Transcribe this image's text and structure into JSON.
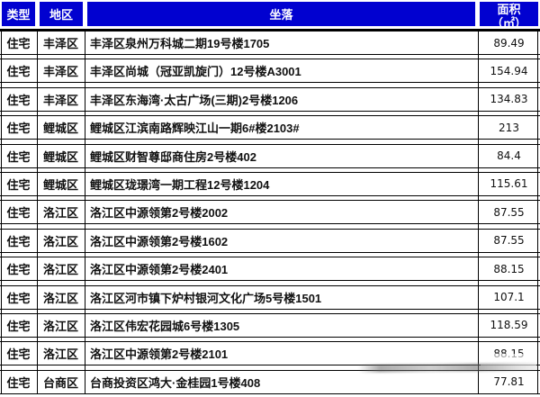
{
  "table": {
    "headers": {
      "type": "类型",
      "district": "地区",
      "location": "坐落",
      "area_line1": "面积",
      "area_line2": "（㎡）"
    },
    "rows": [
      {
        "type": "住宅",
        "district": "丰泽区",
        "location": "丰泽区泉州万科城二期19号楼1705",
        "area": "89.49"
      },
      {
        "type": "住宅",
        "district": "丰泽区",
        "location": "丰泽区尚城（冠亚凯旋门）12号楼A3001",
        "area": "154.94"
      },
      {
        "type": "住宅",
        "district": "丰泽区",
        "location": "丰泽区东海湾·太古广场(三期)2号楼1206",
        "area": "134.83"
      },
      {
        "type": "住宅",
        "district": "鲤城区",
        "location": "鲤城区江滨南路辉映江山一期6#楼2103#",
        "area": "213"
      },
      {
        "type": "住宅",
        "district": "鲤城区",
        "location": "鲤城区财智尊邸商住房2号楼402",
        "area": "84.4"
      },
      {
        "type": "住宅",
        "district": "鲤城区",
        "location": "鲤城区珑璟湾一期工程12号楼1204",
        "area": "115.61"
      },
      {
        "type": "住宅",
        "district": "洛江区",
        "location": "洛江区中源领第2号楼2002",
        "area": "87.55"
      },
      {
        "type": "住宅",
        "district": "洛江区",
        "location": "洛江区中源领第2号楼1602",
        "area": "87.55"
      },
      {
        "type": "住宅",
        "district": "洛江区",
        "location": "洛江区中源领第2号楼2401",
        "area": "88.15"
      },
      {
        "type": "住宅",
        "district": "洛江区",
        "location": "洛江区河市镇下炉村银河文化广场5号楼1501",
        "area": "107.1"
      },
      {
        "type": "住宅",
        "district": "洛江区",
        "location": "洛江区伟宏花园城6号楼1305",
        "area": "118.59"
      },
      {
        "type": "住宅",
        "district": "洛江区",
        "location": "洛江区中源领第2号楼2101",
        "area": "88.15",
        "area_obscured": true
      },
      {
        "type": "住宅",
        "district": "台商区",
        "location": "台商投资区鸿大·金桂园1号楼408",
        "area": "77.81"
      }
    ]
  },
  "colors": {
    "header_bg": "#0101d0",
    "header_text": "#ffffff",
    "border": "#000000",
    "body_text": "#111111"
  }
}
